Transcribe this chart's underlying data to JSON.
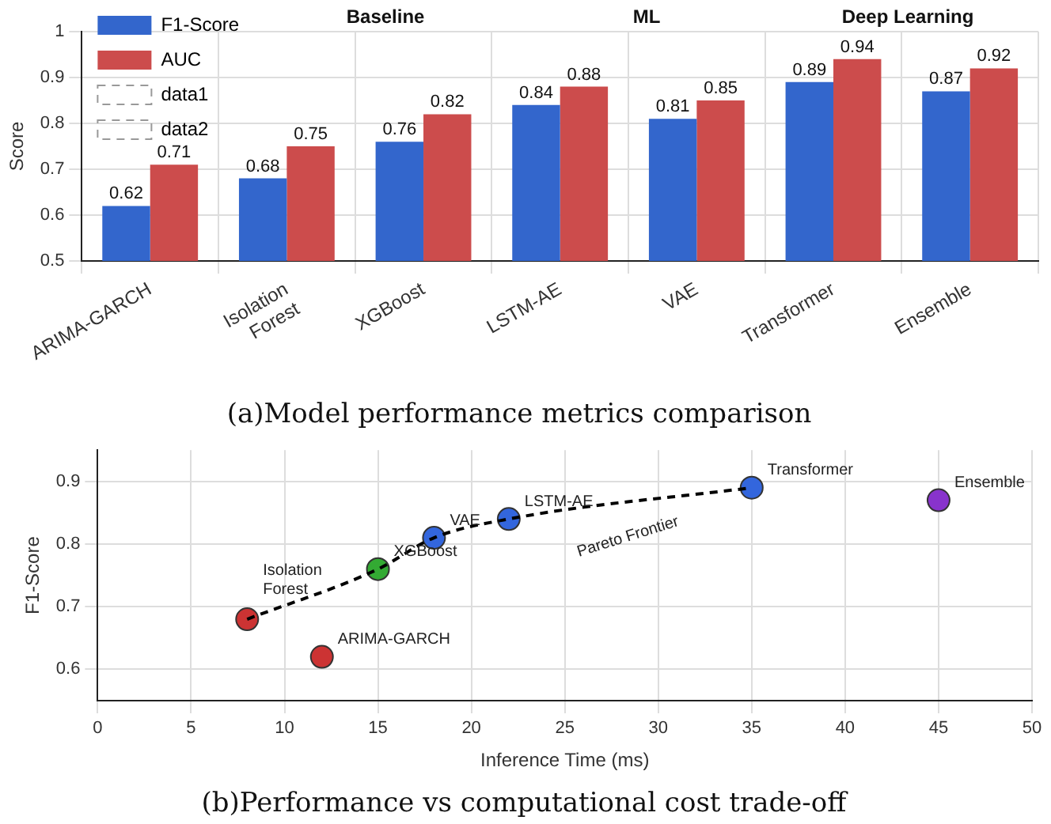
{
  "chart_data": [
    {
      "type": "bar",
      "title": "(a)Model performance metrics comparison",
      "ylabel": "Score",
      "categories": [
        "ARIMA-GARCH",
        "Isolation Forest",
        "XGBoost",
        "LSTM-AE",
        "VAE",
        "Transformer",
        "Ensemble"
      ],
      "series": [
        {
          "name": "F1-Score",
          "color": "#3366cc",
          "values": [
            0.62,
            0.68,
            0.76,
            0.84,
            0.81,
            0.89,
            0.87
          ]
        },
        {
          "name": "AUC",
          "color": "#cc4c4c",
          "values": [
            0.71,
            0.75,
            0.82,
            0.88,
            0.85,
            0.94,
            0.92
          ]
        },
        {
          "type": "line",
          "name": "data1",
          "color": "#999999",
          "line_style": "dashed",
          "values": [
            null,
            null,
            null,
            null,
            null,
            null,
            null
          ]
        },
        {
          "type": "line",
          "name": "data2",
          "color": "#999999",
          "line_style": "dashed",
          "values": [
            null,
            null,
            null,
            null,
            null,
            null,
            null
          ]
        }
      ],
      "ylim": [
        0.5,
        1
      ],
      "yticks": [
        0.5,
        0.6,
        0.7,
        0.8,
        0.9,
        1
      ],
      "annotations": [
        "Baseline",
        "ML",
        "Deep Learning"
      ],
      "data_labels": true,
      "grid": true,
      "legend": "top left"
    },
    {
      "type": "scatter",
      "title": "(b)Performance vs computational cost trade-off",
      "xlabel": "Inference Time (ms)",
      "ylabel": "F1-Score",
      "series": [
        {
          "type": "scatter",
          "x": [
            12,
            8,
            15,
            22,
            18,
            35,
            45
          ],
          "values": [
            0.62,
            0.68,
            0.76,
            0.84,
            0.81,
            0.89,
            0.87
          ],
          "colors": [
            "#cc3333",
            "#cc3333",
            "#33aa33",
            "#3366dd",
            "#3366dd",
            "#3366dd",
            "#8833cc"
          ]
        },
        {
          "type": "line",
          "name": "Pareto Frontier",
          "color": "#000000",
          "line_style": "dashed",
          "marker": "none",
          "x": [
            8,
            15,
            18,
            22,
            35
          ],
          "values": [
            0.68,
            0.76,
            0.81,
            0.84,
            0.89
          ]
        }
      ],
      "xlim": [
        0,
        50
      ],
      "xticks": [
        0,
        5,
        10,
        15,
        20,
        25,
        30,
        35,
        40,
        45,
        50
      ],
      "ylim": [
        0.55,
        0.95
      ],
      "yticks": [
        0.6,
        0.7,
        0.8,
        0.9
      ],
      "annotations": [
        {
          "text": "ARIMA-GARCH",
          "x": 12,
          "y": 0.62
        },
        {
          "text": "Isolation Forest",
          "x": 8,
          "y": 0.68
        },
        {
          "text": "XGBoost",
          "x": 15,
          "y": 0.76
        },
        {
          "text": "LSTM-AE",
          "x": 22,
          "y": 0.84
        },
        {
          "text": "VAE",
          "x": 18,
          "y": 0.81
        },
        {
          "text": "Transformer",
          "x": 35,
          "y": 0.89
        },
        {
          "text": "Ensemble",
          "x": 45,
          "y": 0.87
        }
      ],
      "marker": "circle",
      "grid": true,
      "legend": false
    }
  ]
}
